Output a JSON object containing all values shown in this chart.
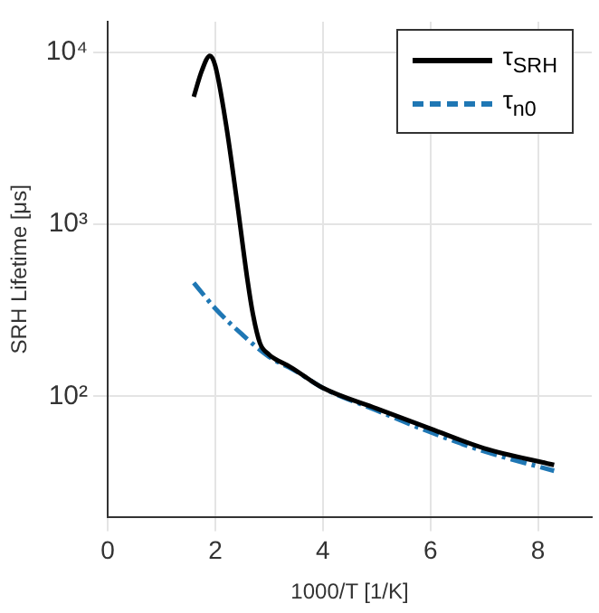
{
  "chart_data": {
    "type": "line",
    "xlabel": "1000/T [1/K]",
    "ylabel": "SRH Lifetime [μs]",
    "log": "y",
    "grid": true,
    "legend": "top right",
    "marker": "none",
    "xlim": [
      0,
      9
    ],
    "xticks": [
      0,
      2,
      4,
      6,
      8
    ],
    "ylim": [
      20,
      15000
    ],
    "yticks": [
      {
        "value": 100,
        "label": "10²"
      },
      {
        "value": 1000,
        "label": "10³"
      },
      {
        "value": 10000,
        "label": "10⁴"
      }
    ],
    "series": [
      {
        "name": "τ$_{SRH}$",
        "color": "#000000",
        "line_style": "solid",
        "x": [
          1.6,
          1.75,
          1.9,
          2.0,
          2.2,
          2.4,
          2.6,
          2.7,
          2.83,
          3.0,
          3.1,
          3.4,
          4,
          5,
          6,
          7,
          8.3
        ],
        "values": [
          5500,
          7800,
          9500,
          8300,
          3800,
          1380,
          470,
          300,
          204,
          175,
          166,
          148,
          112,
          85,
          65,
          50,
          40
        ]
      },
      {
        "name": "τ$_{n0}$",
        "color": "#1f77b4",
        "line_style": "dashed",
        "x": [
          1.6,
          2.0,
          2.5,
          3.0,
          3.5,
          4,
          5,
          6,
          7,
          8.3
        ],
        "values": [
          457,
          324,
          229,
          170,
          140,
          112,
          83,
          62,
          48,
          37
        ]
      }
    ]
  }
}
